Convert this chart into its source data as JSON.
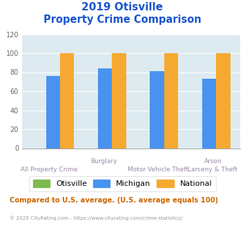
{
  "title_line1": "2019 Otisville",
  "title_line2": "Property Crime Comparison",
  "upper_labels": [
    "",
    "Burglary",
    "",
    "Arson"
  ],
  "lower_labels": [
    "All Property Crime",
    "",
    "Motor Vehicle Theft",
    "Larceny & Theft"
  ],
  "otisville": [
    0,
    0,
    0,
    0
  ],
  "michigan": [
    76,
    84,
    81,
    73
  ],
  "national": [
    100,
    100,
    100,
    100
  ],
  "color_otisville": "#7db94e",
  "color_michigan": "#4992f0",
  "color_national": "#f5a930",
  "ylim": [
    0,
    120
  ],
  "yticks": [
    0,
    20,
    40,
    60,
    80,
    100,
    120
  ],
  "bg_color": "#ddeaf0",
  "title_color": "#1a55cc",
  "xlabel_color": "#9988aa",
  "footer_text": "Compared to U.S. average. (U.S. average equals 100)",
  "footer_color": "#cc6600",
  "copyright_text": "© 2025 CityRating.com - https://www.cityrating.com/crime-statistics/",
  "copyright_color": "#999999",
  "legend_labels": [
    "Otisville",
    "Michigan",
    "National"
  ]
}
